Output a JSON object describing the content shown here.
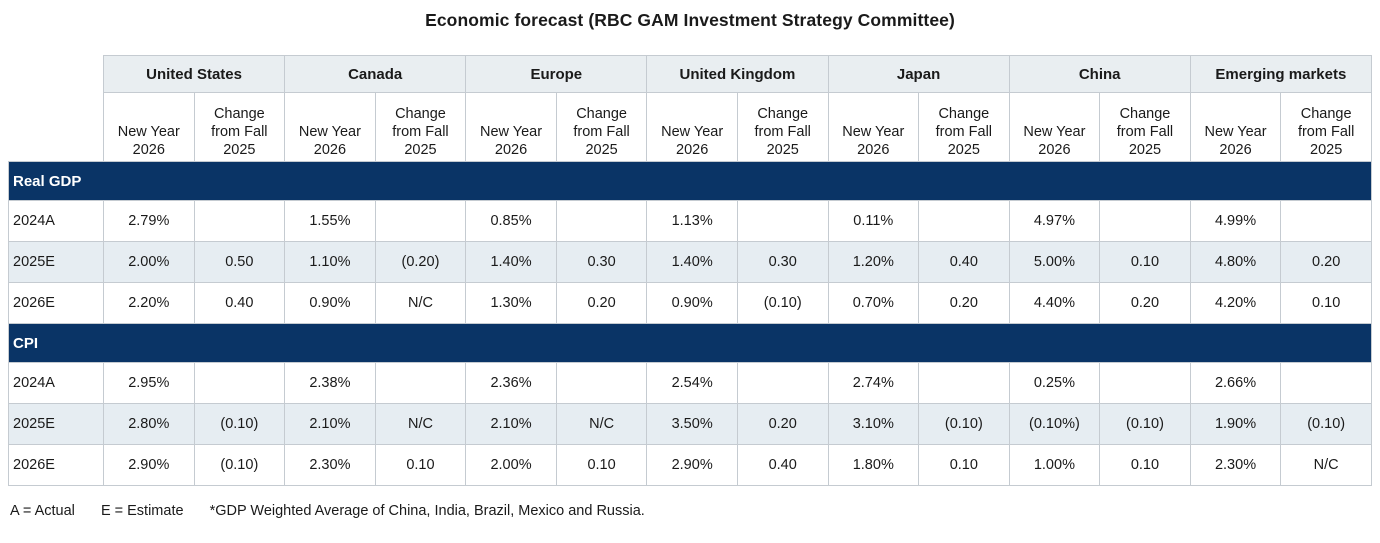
{
  "title": "Economic forecast (RBC GAM Investment Strategy Committee)",
  "footnote": [
    "A = Actual",
    "E = Estimate",
    "*GDP Weighted Average of China, India, Brazil, Mexico and Russia."
  ],
  "colors": {
    "navy_band": "#0A3466",
    "group_header_bg": "#E9EEF1",
    "stripe_row_bg": "#E6EDF2",
    "grid_border": "#C5CBD1",
    "text": "#1A1A1A"
  },
  "table": {
    "groups": [
      "United States",
      "Canada",
      "Europe",
      "United Kingdom",
      "Japan",
      "China",
      "Emerging markets"
    ],
    "subheaders": {
      "new_year": "New Year 2026",
      "change": "Change from Fall 2025"
    },
    "sections": [
      {
        "label": "Real GDP",
        "rows": [
          {
            "label": "2024A",
            "values": [
              "2.79%",
              "",
              "1.55%",
              "",
              "0.85%",
              "",
              "1.13%",
              "",
              "0.11%",
              "",
              "4.97%",
              "",
              "4.99%",
              ""
            ]
          },
          {
            "label": "2025E",
            "values": [
              "2.00%",
              "0.50",
              "1.10%",
              "(0.20)",
              "1.40%",
              "0.30",
              "1.40%",
              "0.30",
              "1.20%",
              "0.40",
              "5.00%",
              "0.10",
              "4.80%",
              "0.20"
            ]
          },
          {
            "label": "2026E",
            "values": [
              "2.20%",
              "0.40",
              "0.90%",
              "N/C",
              "1.30%",
              "0.20",
              "0.90%",
              "(0.10)",
              "0.70%",
              "0.20",
              "4.40%",
              "0.20",
              "4.20%",
              "0.10"
            ]
          }
        ]
      },
      {
        "label": "CPI",
        "rows": [
          {
            "label": "2024A",
            "values": [
              "2.95%",
              "",
              "2.38%",
              "",
              "2.36%",
              "",
              "2.54%",
              "",
              "2.74%",
              "",
              "0.25%",
              "",
              "2.66%",
              ""
            ]
          },
          {
            "label": "2025E",
            "values": [
              "2.80%",
              "(0.10)",
              "2.10%",
              "N/C",
              "2.10%",
              "N/C",
              "3.50%",
              "0.20",
              "3.10%",
              "(0.10)",
              "(0.10%)",
              "(0.10)",
              "1.90%",
              "(0.10)"
            ]
          },
          {
            "label": "2026E",
            "values": [
              "2.90%",
              "(0.10)",
              "2.30%",
              "0.10",
              "2.00%",
              "0.10",
              "2.90%",
              "0.40",
              "1.80%",
              "0.10",
              "1.00%",
              "0.10",
              "2.30%",
              "N/C"
            ]
          }
        ]
      }
    ]
  }
}
